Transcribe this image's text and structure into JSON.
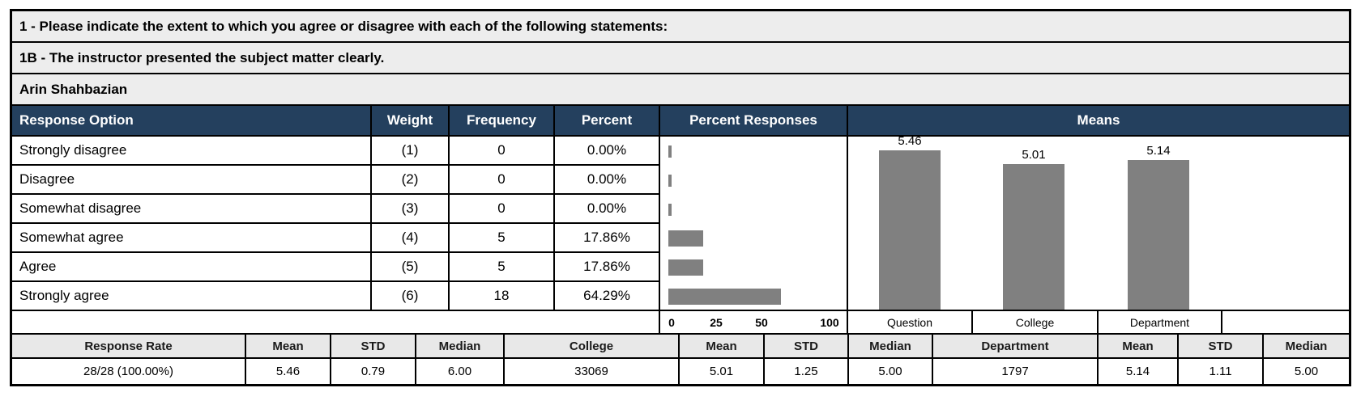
{
  "banner": {
    "question_group": "1 - Please indicate the extent to which you agree or disagree with each of the following statements:",
    "question": "1B - The instructor presented the subject matter clearly.",
    "instructor": "Arin Shahbazian"
  },
  "table": {
    "headers": {
      "response_option": "Response Option",
      "weight": "Weight",
      "frequency": "Frequency",
      "percent": "Percent",
      "percent_responses": "Percent Responses",
      "means": "Means"
    },
    "rows": [
      {
        "option": "Strongly disagree",
        "weight": "(1)",
        "frequency": "0",
        "percent": "0.00%"
      },
      {
        "option": "Disagree",
        "weight": "(2)",
        "frequency": "0",
        "percent": "0.00%"
      },
      {
        "option": "Somewhat disagree",
        "weight": "(3)",
        "frequency": "0",
        "percent": "0.00%"
      },
      {
        "option": "Somewhat agree",
        "weight": "(4)",
        "frequency": "5",
        "percent": "17.86%"
      },
      {
        "option": "Agree",
        "weight": "(5)",
        "frequency": "5",
        "percent": "17.86%"
      },
      {
        "option": "Strongly agree",
        "weight": "(6)",
        "frequency": "18",
        "percent": "64.29%"
      }
    ]
  },
  "chart_data": [
    {
      "type": "bar",
      "orientation": "horizontal",
      "title": "Percent Responses",
      "categories": [
        "Strongly disagree",
        "Disagree",
        "Somewhat disagree",
        "Somewhat agree",
        "Agree",
        "Strongly agree"
      ],
      "values": [
        0,
        0,
        0,
        17.86,
        17.86,
        64.29
      ],
      "x_ticks": [
        0,
        25,
        50,
        100
      ],
      "xlim": [
        0,
        100
      ],
      "grid": false
    },
    {
      "type": "bar",
      "orientation": "vertical",
      "title": "Means",
      "categories": [
        "Question",
        "College",
        "Department"
      ],
      "values": [
        5.46,
        5.01,
        5.14
      ],
      "data_labels": [
        "5.46",
        "5.01",
        "5.14"
      ],
      "ylim": [
        0,
        6
      ],
      "grid": false
    }
  ],
  "stats": {
    "headers": [
      "Response Rate",
      "Mean",
      "STD",
      "Median",
      "College",
      "Mean",
      "STD",
      "Median",
      "Department",
      "Mean",
      "STD",
      "Median"
    ],
    "values": [
      "28/28 (100.00%)",
      "5.46",
      "0.79",
      "6.00",
      "33069",
      "5.01",
      "1.25",
      "5.00",
      "1797",
      "5.14",
      "1.11",
      "5.00"
    ]
  },
  "colors": {
    "header_bg": "#24405E",
    "header_text": "#FFFFFF",
    "bar": "#808080",
    "banner_bg": "#EDEDED",
    "stats_header_bg": "#E8E8E8",
    "border": "#000000"
  }
}
